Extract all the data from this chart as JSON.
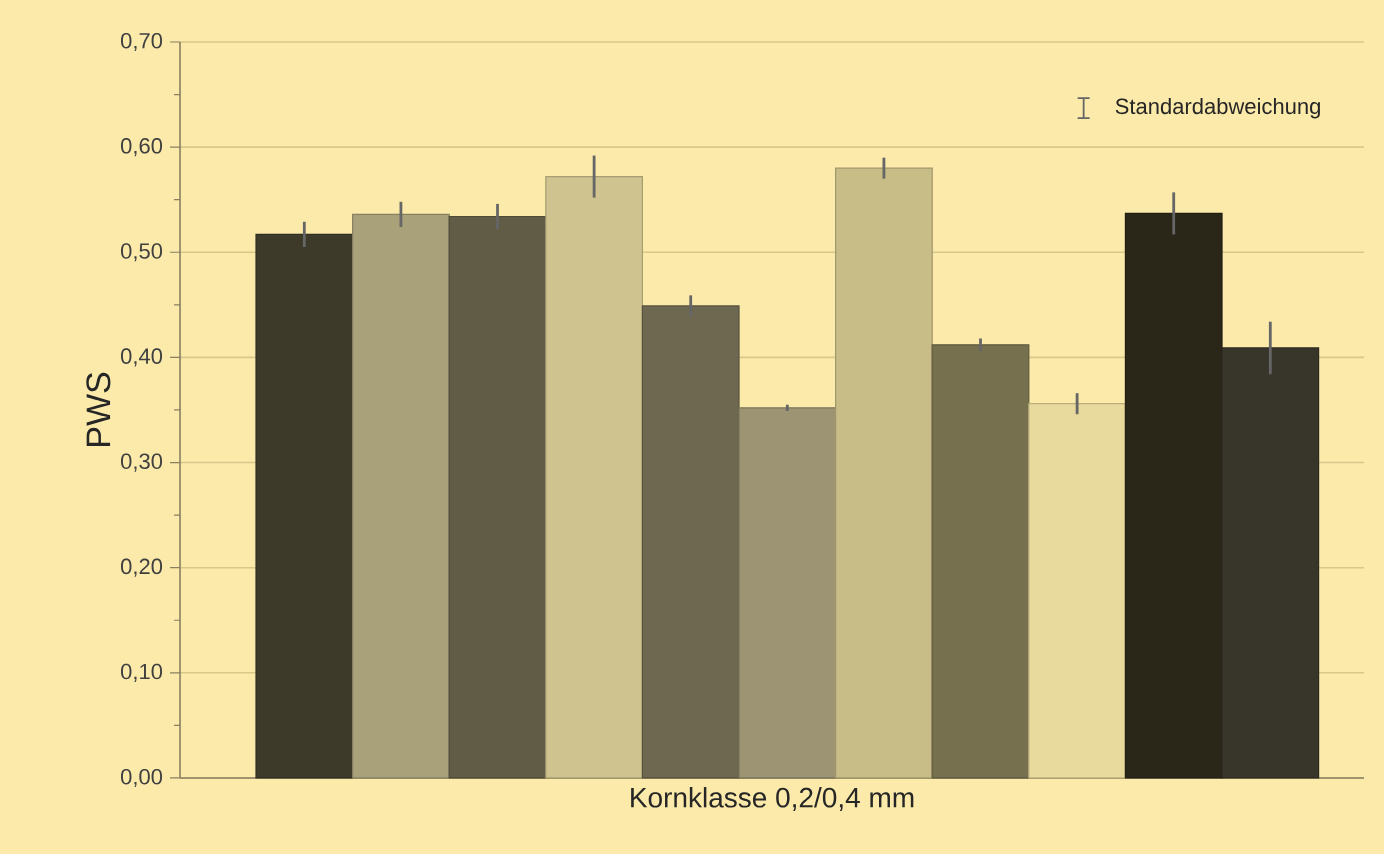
{
  "chart_data": {
    "type": "bar",
    "xlabel": "Kornklasse 0,2/0,4 mm",
    "ylabel": "PWS",
    "annotations": [
      "Standardabweichung"
    ],
    "categories": [
      null,
      null,
      null,
      null,
      null,
      null,
      null,
      null,
      null,
      null,
      null
    ],
    "values": [
      0.517,
      0.536,
      0.534,
      0.572,
      0.449,
      0.352,
      0.58,
      0.412,
      0.356,
      0.537,
      0.409
    ],
    "errors": [
      0.012,
      0.012,
      0.012,
      0.02,
      0.01,
      0.003,
      0.01,
      0.006,
      0.01,
      0.02,
      0.025
    ],
    "colors": [
      "#3d3a2a",
      "#a9a17a",
      "#615c45",
      "#cfc48f",
      "#6e6850",
      "#9c9473",
      "#c9bd87",
      "#77704f",
      "#e8da9c",
      "#2a2719",
      "#38352a"
    ],
    "ylim": [
      0,
      0.7
    ],
    "yticks": [
      {
        "value": 0,
        "label": "0,00"
      },
      {
        "value": 0.05,
        "label": null
      },
      {
        "value": 0.1,
        "label": "0,10"
      },
      {
        "value": 0.15,
        "label": null
      },
      {
        "value": 0.2,
        "label": "0,20"
      },
      {
        "value": 0.25,
        "label": null
      },
      {
        "value": 0.3,
        "label": "0,30"
      },
      {
        "value": 0.35,
        "label": null
      },
      {
        "value": 0.4,
        "label": "0,40"
      },
      {
        "value": 0.45,
        "label": null
      },
      {
        "value": 0.5,
        "label": "0,50"
      },
      {
        "value": 0.55,
        "label": null
      },
      {
        "value": 0.6,
        "label": "0,60"
      },
      {
        "value": 0.65,
        "label": null
      },
      {
        "value": 0.7,
        "label": "0,70"
      }
    ],
    "grid": "y"
  }
}
